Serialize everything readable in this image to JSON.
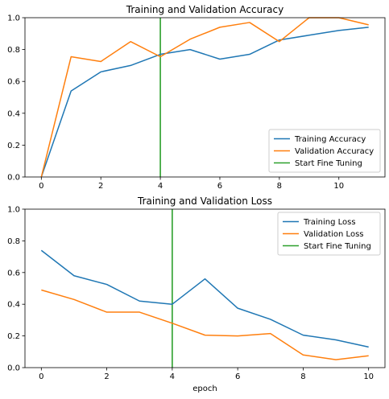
{
  "chart_data": [
    {
      "type": "line",
      "title": "Training and Validation Accuracy",
      "xlabel": "",
      "ylabel": "",
      "xlim": [
        -0.55,
        11.55
      ],
      "ylim": [
        0,
        1.0
      ],
      "xticks": [
        0,
        2,
        4,
        6,
        8,
        10
      ],
      "yticks": [
        0.0,
        0.2,
        0.4,
        0.6,
        0.8,
        1.0
      ],
      "legend_position": "lower-right",
      "series": [
        {
          "name": "Training Accuracy",
          "color": "#1f77b4",
          "x": [
            0,
            1,
            2,
            3,
            4,
            5,
            6,
            7,
            8,
            9,
            10,
            11
          ],
          "y": [
            0.0,
            0.54,
            0.66,
            0.7,
            0.77,
            0.8,
            0.74,
            0.77,
            0.86,
            0.89,
            0.92,
            0.94
          ]
        },
        {
          "name": "Validation Accuracy",
          "color": "#ff7f0e",
          "x": [
            0,
            1,
            2,
            3,
            4,
            5,
            6,
            7,
            8,
            9,
            10,
            11
          ],
          "y": [
            0.0,
            0.755,
            0.725,
            0.85,
            0.755,
            0.865,
            0.94,
            0.97,
            0.85,
            1.0,
            1.0,
            0.955
          ]
        }
      ],
      "vline": {
        "name": "Start Fine Tuning",
        "color": "#2ca02c",
        "x": 4
      }
    },
    {
      "type": "line",
      "title": "Training and Validation Loss",
      "xlabel": "epoch",
      "ylabel": "",
      "xlim": [
        -0.5,
        10.5
      ],
      "ylim": [
        0,
        1.0
      ],
      "xticks": [
        0,
        2,
        4,
        6,
        8,
        10
      ],
      "yticks": [
        0.0,
        0.2,
        0.4,
        0.6,
        0.8,
        1.0
      ],
      "legend_position": "upper-right",
      "series": [
        {
          "name": "Training Loss",
          "color": "#1f77b4",
          "x": [
            0,
            1,
            2,
            3,
            4,
            5,
            6,
            7,
            8,
            9,
            10
          ],
          "y": [
            0.74,
            0.58,
            0.525,
            0.42,
            0.4,
            0.56,
            0.375,
            0.305,
            0.205,
            0.175,
            0.13
          ]
        },
        {
          "name": "Validation Loss",
          "color": "#ff7f0e",
          "x": [
            0,
            1,
            2,
            3,
            4,
            5,
            6,
            7,
            8,
            9,
            10
          ],
          "y": [
            0.49,
            0.43,
            0.35,
            0.35,
            0.28,
            0.205,
            0.2,
            0.215,
            0.08,
            0.05,
            0.075
          ]
        }
      ],
      "vline": {
        "name": "Start Fine Tuning",
        "color": "#2ca02c",
        "x": 4
      }
    }
  ]
}
